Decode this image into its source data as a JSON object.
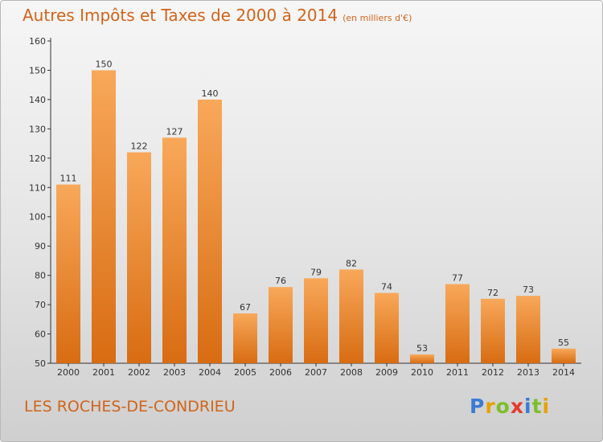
{
  "title": "Autres Impôts et Taxes de 2000 à 2014",
  "subtitle": "(en milliers d'€)",
  "commune": "LES ROCHES-DE-CONDRIEU",
  "logo": {
    "text": "Proxiti",
    "colors": [
      "#3a7bd5",
      "#e8a100",
      "#7bbf2a",
      "#e23b2e",
      "#3a7bd5",
      "#7bbf2a",
      "#e8a100"
    ]
  },
  "colors": {
    "bar_light": "#f8a85a",
    "bar_dark": "#d86c12",
    "text": "#d0641a",
    "axis": "#333333"
  },
  "chart_data": {
    "type": "bar",
    "categories": [
      "2000",
      "2001",
      "2002",
      "2003",
      "2004",
      "2005",
      "2006",
      "2007",
      "2008",
      "2009",
      "2010",
      "2011",
      "2012",
      "2013",
      "2014"
    ],
    "values": [
      111,
      150,
      122,
      127,
      140,
      67,
      76,
      79,
      82,
      74,
      53,
      77,
      72,
      73,
      55
    ],
    "title": "Autres Impôts et Taxes de 2000 à 2014",
    "subtitle": "(en milliers d'€)",
    "xlabel": "",
    "ylabel": "",
    "ylim": [
      50,
      160
    ],
    "yticks": [
      50,
      60,
      70,
      80,
      90,
      100,
      110,
      120,
      130,
      140,
      150,
      160
    ],
    "grid": false
  }
}
